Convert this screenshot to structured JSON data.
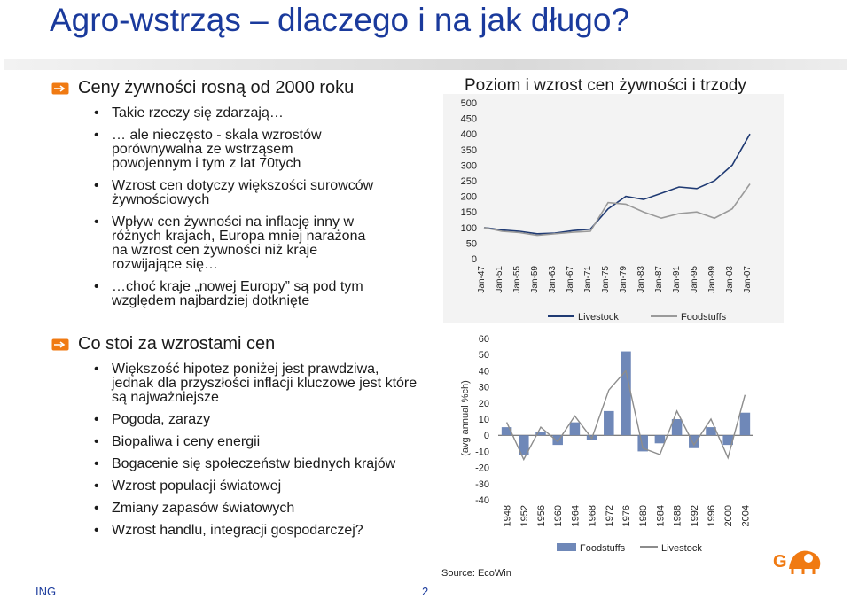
{
  "title": "Agro-wstrząs – dlaczego i na jak długo?",
  "sections": [
    {
      "heading": "Ceny żywności rosną od 2000 roku",
      "bullets": [
        "Takie rzeczy się zdarzają…",
        "… ale nieczęsto - skala wzrostów porównywalna ze wstrząsem powojennym i tym z lat 70tych",
        "Wzrost cen dotyczy większości surowców żywnościowych",
        "Wpływ cen żywności na inflację inny w różnych krajach, Europa mniej narażona na wzrost cen żywności niż kraje rozwijające się…",
        "…choć kraje „nowej Europy” są pod tym względem najbardziej dotknięte"
      ]
    },
    {
      "heading": "Co stoi za wzrostami cen",
      "bullets": [
        "Większość hipotez poniżej jest prawdziwa, jednak dla przyszłości inflacji kluczowe jest które są najważniejsze",
        "Pogoda, zarazy",
        "Biopaliwa i ceny energii",
        "Bogacenie się społeczeństw biednych krajów",
        "Wzrost populacji światowej",
        "Zmiany zapasów światowych",
        "Wzrost handlu, integracji gospodarczej?"
      ]
    }
  ],
  "chart_data": [
    {
      "type": "line",
      "title": "Poziom i wzrost cen żywności i trzody",
      "categories": [
        "Jan-47",
        "Jan-51",
        "Jan-55",
        "Jan-59",
        "Jan-63",
        "Jan-67",
        "Jan-71",
        "Jan-75",
        "Jan-79",
        "Jan-83",
        "Jan-87",
        "Jan-91",
        "Jan-95",
        "Jan-99",
        "Jan-03",
        "Jan-07"
      ],
      "ylim": [
        0,
        500
      ],
      "yticks": [
        0,
        50,
        100,
        150,
        200,
        250,
        300,
        350,
        400,
        450,
        500
      ],
      "series": [
        {
          "name": "Livestock",
          "color": "#1f3a73",
          "values": [
            100,
            92,
            88,
            80,
            82,
            90,
            95,
            160,
            200,
            190,
            210,
            230,
            225,
            250,
            300,
            400
          ]
        },
        {
          "name": "Foodstuffs",
          "color": "#9a9a9a",
          "values": [
            100,
            88,
            84,
            75,
            80,
            85,
            88,
            180,
            175,
            150,
            130,
            145,
            150,
            130,
            160,
            240
          ]
        }
      ]
    },
    {
      "type": "bar+line",
      "ylabel": "(avg annual %ch)",
      "source": "Source: EcoWin",
      "categories": [
        "1948",
        "1952",
        "1956",
        "1960",
        "1964",
        "1968",
        "1972",
        "1976",
        "1980",
        "1984",
        "1988",
        "1992",
        "1996",
        "2000",
        "2004"
      ],
      "ylim": [
        -40,
        60
      ],
      "yticks": [
        -40,
        -30,
        -20,
        -10,
        0,
        10,
        20,
        30,
        40,
        50,
        60
      ],
      "series": [
        {
          "name": "Foodstuffs",
          "color": "#6f88b8",
          "values": [
            5,
            -12,
            2,
            -6,
            8,
            -3,
            15,
            52,
            -10,
            -5,
            10,
            -8,
            5,
            -6,
            14
          ]
        },
        {
          "name": "Livestock",
          "color": "#8c8c8c",
          "values": [
            8,
            -15,
            5,
            -4,
            12,
            -2,
            28,
            40,
            -8,
            -12,
            15,
            -6,
            10,
            -14,
            25
          ]
        }
      ]
    }
  ],
  "footer": {
    "company": "ING",
    "page": "2"
  }
}
